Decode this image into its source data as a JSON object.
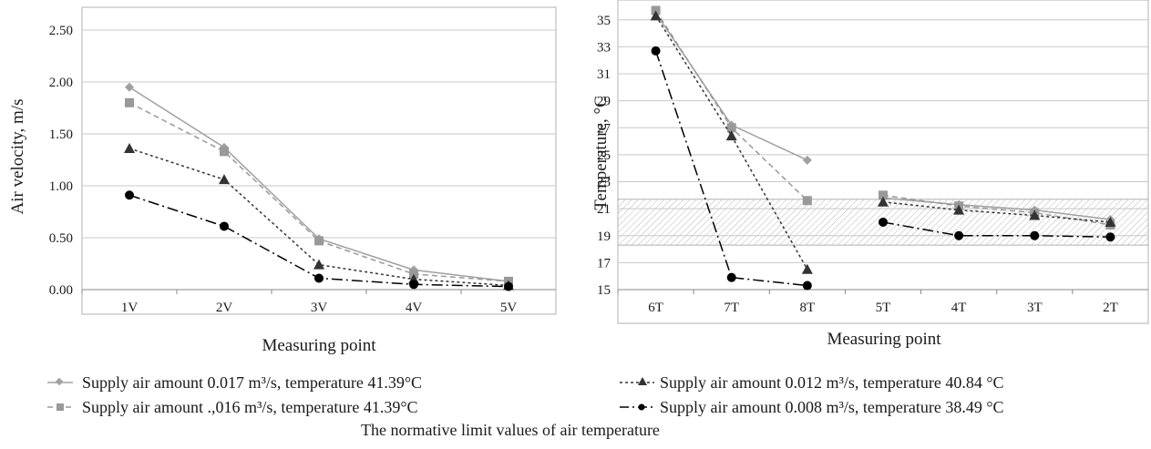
{
  "chart_data": [
    {
      "type": "line",
      "xlabel": "Measuring point",
      "ylabel": "Air velocity, m/s",
      "categories": [
        "1V",
        "2V",
        "3V",
        "4V",
        "5V"
      ],
      "ylim": [
        0,
        2.5
      ],
      "yticks": [
        "0.00",
        "0.50",
        "1.00",
        "1.50",
        "2.00",
        "2.50"
      ],
      "grid": true,
      "series": [
        {
          "name": "Supply air amount 0.017 m³/s, temperature 41.39°C",
          "values": [
            1.95,
            1.37,
            0.49,
            0.19,
            0.08
          ],
          "color": "#a0a0a0",
          "dash": "",
          "marker": "diamond"
        },
        {
          "name": "Supply air amount .,016 m³/s, temperature 41.39°C",
          "values": [
            1.8,
            1.33,
            0.47,
            0.15,
            0.08
          ],
          "color": "#999999",
          "dash": "6,4",
          "marker": "square"
        },
        {
          "name": "Supply air amount 0.012 m³/s, temperature 40.84 °C",
          "values": [
            1.36,
            1.06,
            0.24,
            0.1,
            0.04
          ],
          "color": "#333333",
          "dash": "3,3",
          "marker": "triangle"
        },
        {
          "name": "Supply air amount 0.008 m³/s, temperature 38.49 °C",
          "values": [
            0.91,
            0.61,
            0.11,
            0.05,
            0.03
          ],
          "color": "#000000",
          "dash": "12,4,2,4",
          "marker": "circle"
        }
      ]
    },
    {
      "type": "line",
      "xlabel": "Measuring point",
      "ylabel": "Temperature, °C",
      "categories": [
        "6T",
        "7T",
        "8T",
        "5T",
        "4T",
        "3T",
        "2T"
      ],
      "ylim": [
        15,
        36
      ],
      "yticks": [
        "15",
        "17",
        "19",
        "21",
        "23",
        "25",
        "27",
        "29",
        "31",
        "33",
        "35"
      ],
      "grid": true,
      "normative_band": [
        18.3,
        21.7
      ],
      "series": [
        {
          "name": "Supply air amount 0.017 m³/s, temperature 41.39°C",
          "values": [
            35.5,
            27.2,
            24.6,
            21.8,
            21.3,
            20.9,
            20.2
          ],
          "segments": [
            [
              0,
              2
            ],
            [
              3,
              6
            ]
          ]
        },
        {
          "name": "Supply air amount .,016 m³/s, temperature 41.39°C",
          "values": [
            35.7,
            27.0,
            21.6,
            22.0,
            21.2,
            20.7,
            19.8
          ],
          "segments": [
            [
              0,
              2
            ],
            [
              3,
              6
            ]
          ]
        },
        {
          "name": "Supply air amount 0.012 m³/s, temperature 40.84 °C",
          "values": [
            35.3,
            26.4,
            16.5,
            21.5,
            20.9,
            20.5,
            20.0
          ],
          "segments": [
            [
              0,
              2
            ],
            [
              3,
              6
            ]
          ]
        },
        {
          "name": "Supply air amount 0.008 m³/s, temperature 38.49 °C",
          "values": [
            32.7,
            15.9,
            15.3,
            20.0,
            19.0,
            19.0,
            18.9
          ],
          "segments": [
            [
              0,
              2
            ],
            [
              3,
              6
            ]
          ]
        }
      ]
    }
  ],
  "legend": {
    "items": [
      "Supply air amount 0.017 m³/s, temperature 41.39°C",
      "Supply air amount 0.012 m³/s, temperature 40.84 °C",
      "Supply air amount .,016 m³/s, temperature 41.39°C",
      "Supply air amount 0.008 m³/s, temperature 38.49 °C"
    ],
    "normative_label": "The normative limit values of air temperature"
  }
}
